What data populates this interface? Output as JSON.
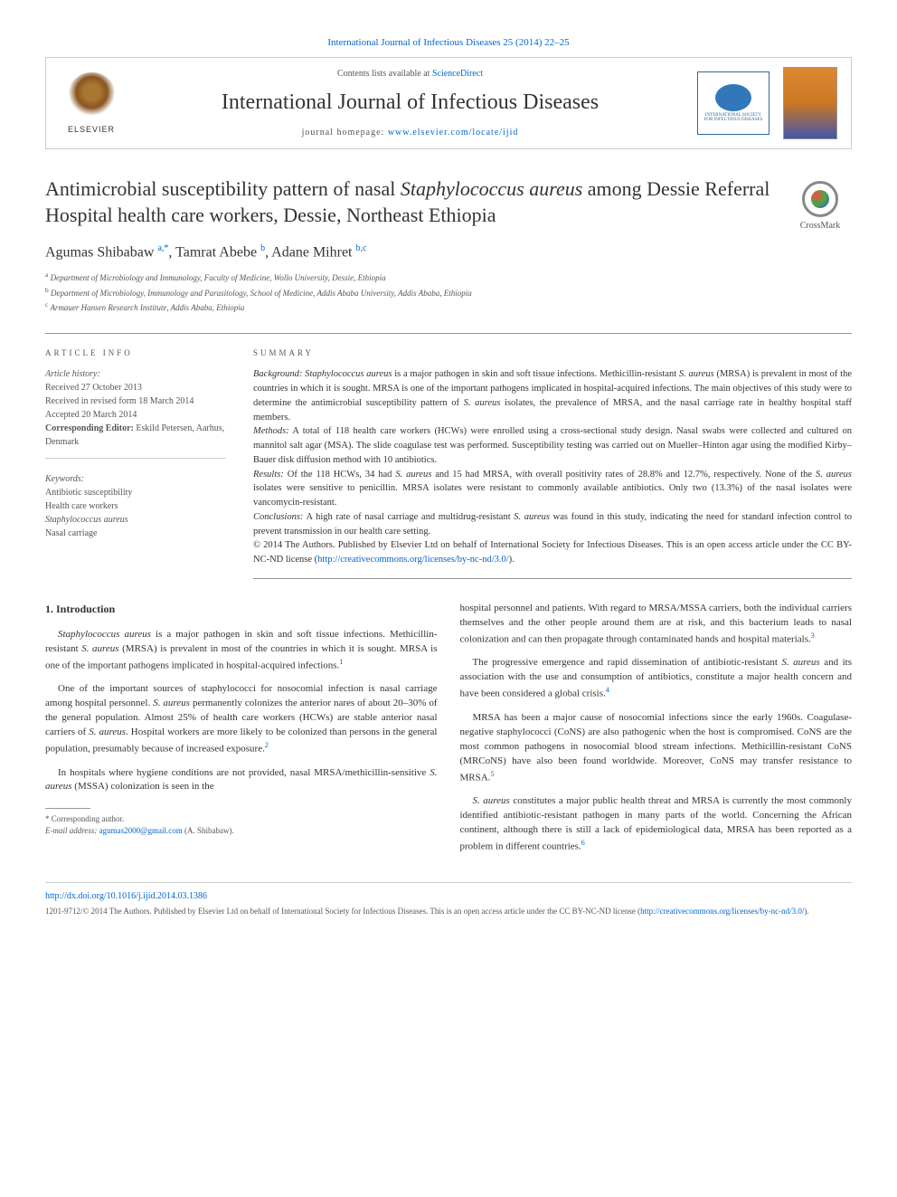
{
  "top_citation": "International Journal of Infectious Diseases 25 (2014) 22–25",
  "header": {
    "elsevier_label": "ELSEVIER",
    "contents_prefix": "Contents lists available at ",
    "contents_link": "ScienceDirect",
    "journal_name": "International Journal of Infectious Diseases",
    "homepage_prefix": "journal homepage: ",
    "homepage_url": "www.elsevier.com/locate/ijid",
    "society_line1": "INTERNATIONAL SOCIETY",
    "society_line2": "FOR INFECTIOUS DISEASES"
  },
  "crossmark_label": "CrossMark",
  "title_html": "Antimicrobial susceptibility pattern of nasal <em>Staphylococcus aureus</em> among Dessie Referral Hospital health care workers, Dessie, Northeast Ethiopia",
  "authors_html": "Agumas Shibabaw <sup>a,*</sup>, Tamrat Abebe <sup>b</sup>, Adane Mihret <sup>b,c</sup>",
  "affiliations": [
    "a Department of Microbiology and Immunology, Faculty of Medicine, Wollo University, Dessie, Ethiopia",
    "b Department of Microbiology, Immunology and Parasitology, School of Medicine, Addis Ababa University, Addis Ababa, Ethiopia",
    "c Armauer Hansen Research Institute, Addis Ababa, Ethiopia"
  ],
  "article_info": {
    "heading": "ARTICLE INFO",
    "history_label": "Article history:",
    "received": "Received 27 October 2013",
    "revised": "Received in revised form 18 March 2014",
    "accepted": "Accepted 20 March 2014",
    "editor_label": "Corresponding Editor:",
    "editor": " Eskild Petersen, Aarhus, Denmark",
    "keywords_label": "Keywords:",
    "keywords": [
      "Antibiotic susceptibility",
      "Health care workers",
      "Staphylococcus aureus",
      "Nasal carriage"
    ]
  },
  "summary": {
    "heading": "SUMMARY",
    "background_label": "Background:",
    "background": " <em>Staphylococcus aureus</em> is a major pathogen in skin and soft tissue infections. Methicillin-resistant <em>S. aureus</em> (MRSA) is prevalent in most of the countries in which it is sought. MRSA is one of the important pathogens implicated in hospital-acquired infections. The main objectives of this study were to determine the antimicrobial susceptibility pattern of <em>S. aureus</em> isolates, the prevalence of MRSA, and the nasal carriage rate in healthy hospital staff members.",
    "methods_label": "Methods:",
    "methods": " A total of 118 health care workers (HCWs) were enrolled using a cross-sectional study design. Nasal swabs were collected and cultured on mannitol salt agar (MSA). The slide coagulase test was performed. Susceptibility testing was carried out on Mueller–Hinton agar using the modified Kirby–Bauer disk diffusion method with 10 antibiotics.",
    "results_label": "Results:",
    "results": " Of the 118 HCWs, 34 had <em>S. aureus</em> and 15 had MRSA, with overall positivity rates of 28.8% and 12.7%, respectively. None of the <em>S. aureus</em> isolates were sensitive to penicillin. MRSA isolates were resistant to commonly available antibiotics. Only two (13.3%) of the nasal isolates were vancomycin-resistant.",
    "conclusions_label": "Conclusions:",
    "conclusions": " A high rate of nasal carriage and multidrug-resistant <em>S. aureus</em> was found in this study, indicating the need for standard infection control to prevent transmission in our health care setting.",
    "copyright": "© 2014 The Authors. Published by Elsevier Ltd on behalf of International Society for Infectious Diseases. This is an open access article under the CC BY-NC-ND license (",
    "license_url": "http://creativecommons.org/licenses/by-nc-nd/3.0/",
    "copyright_suffix": ")."
  },
  "intro": {
    "heading": "1. Introduction",
    "p1": "<em>Staphylococcus aureus</em> is a major pathogen in skin and soft tissue infections. Methicillin-resistant <em>S. aureus</em> (MRSA) is prevalent in most of the countries in which it is sought. MRSA is one of the important pathogens implicated in hospital-acquired infections.<sup>1</sup>",
    "p2": "One of the important sources of staphylococci for nosocomial infection is nasal carriage among hospital personnel. <em>S. aureus</em> permanently colonizes the anterior nares of about 20–30% of the general population. Almost 25% of health care workers (HCWs) are stable anterior nasal carriers of <em>S. aureus</em>. Hospital workers are more likely to be colonized than persons in the general population, presumably because of increased exposure.<sup>2</sup>",
    "p3": "In hospitals where hygiene conditions are not provided, nasal MRSA/methicillin-sensitive <em>S. aureus</em> (MSSA) colonization is seen in the",
    "p4": "hospital personnel and patients. With regard to MRSA/MSSA carriers, both the individual carriers themselves and the other people around them are at risk, and this bacterium leads to nasal colonization and can then propagate through contaminated hands and hospital materials.<sup>3</sup>",
    "p5": "The progressive emergence and rapid dissemination of antibiotic-resistant <em>S. aureus</em> and its association with the use and consumption of antibiotics, constitute a major health concern and have been considered a global crisis.<sup>4</sup>",
    "p6": "MRSA has been a major cause of nosocomial infections since the early 1960s. Coagulase-negative staphylococci (CoNS) are also pathogenic when the host is compromised. CoNS are the most common pathogens in nosocomial blood stream infections. Methicillin-resistant CoNS (MRCoNS) have also been found worldwide. Moreover, CoNS may transfer resistance to MRSA.<sup>5</sup>",
    "p7": "<em>S. aureus</em> constitutes a major public health threat and MRSA is currently the most commonly identified antibiotic-resistant pathogen in many parts of the world. Concerning the African continent, although there is still a lack of epidemiological data, MRSA has been reported as a problem in different countries.<sup>6</sup>"
  },
  "footnote": {
    "corresponding": "* Corresponding author.",
    "email_label": "E-mail address: ",
    "email": "agumas2000@gmail.com",
    "email_suffix": " (A. Shibabaw)."
  },
  "bottom": {
    "doi": "http://dx.doi.org/10.1016/j.ijid.2014.03.1386",
    "issn_copyright": "1201-9712/© 2014 The Authors. Published by Elsevier Ltd on behalf of International Society for Infectious Diseases. This is an open access article under the CC BY-NC-ND license (",
    "license_url": "http://creativecommons.org/licenses/by-nc-nd/3.0/",
    "suffix": ")."
  },
  "colors": {
    "link": "#0066cc",
    "text": "#333333",
    "muted": "#555555",
    "border": "#cccccc"
  }
}
